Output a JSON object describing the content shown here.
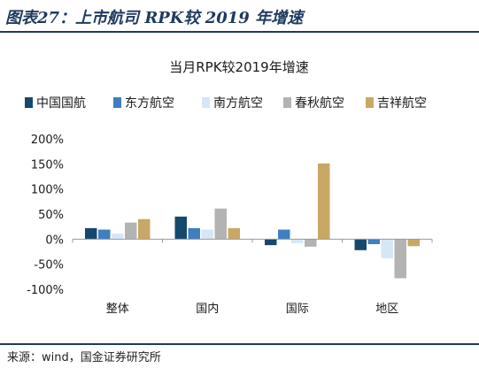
{
  "figure_label": "图表27：上市航司 RPK较 2019 年增速",
  "source": "来源：wind，国金证券研究所",
  "chart_data": {
    "type": "bar",
    "title": "当月RPK较2019年增速",
    "xlabel": "",
    "ylabel": "",
    "categories": [
      "整体",
      "国内",
      "国际",
      "地区"
    ],
    "series": [
      {
        "name": "中国国航",
        "color": "#16486e",
        "values": [
          22,
          45,
          -12,
          -22
        ]
      },
      {
        "name": "东方航空",
        "color": "#3f7fbf",
        "values": [
          19,
          22,
          19,
          -10
        ]
      },
      {
        "name": "南方航空",
        "color": "#d5e7f7",
        "values": [
          11,
          19,
          -8,
          -38
        ]
      },
      {
        "name": "春秋航空",
        "color": "#b3b3b3",
        "values": [
          33,
          61,
          -15,
          -78
        ]
      },
      {
        "name": "吉祥航空",
        "color": "#c9a764",
        "values": [
          40,
          22,
          151,
          -14
        ]
      }
    ],
    "ylim": [
      -100,
      200
    ],
    "yticks": [
      -100,
      -50,
      0,
      50,
      100,
      150,
      200
    ],
    "ytick_labels": [
      "-100%",
      "-50%",
      "0%",
      "50%",
      "100%",
      "150%",
      "200%"
    ],
    "grid": false,
    "legend": "top"
  }
}
